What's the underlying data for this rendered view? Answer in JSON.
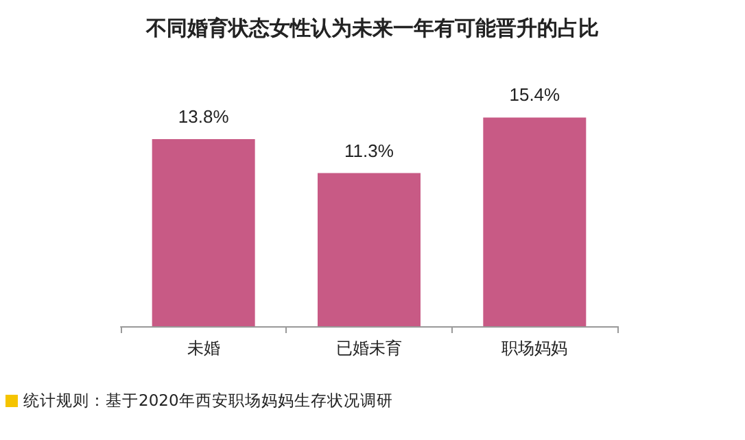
{
  "chart_data": {
    "type": "bar",
    "title": "不同婚育状态女性认为未来一年有可能晋升的占比",
    "categories": [
      "未婚",
      "已婚未育",
      "职场妈妈"
    ],
    "values": [
      13.8,
      11.3,
      15.4
    ],
    "color": "#c85a85",
    "value_labels": [
      "13.8%",
      "11.3%",
      "15.4%"
    ],
    "annotations": [
      "统计规则：基于2020年西安职场妈妈生存状况调研"
    ]
  }
}
